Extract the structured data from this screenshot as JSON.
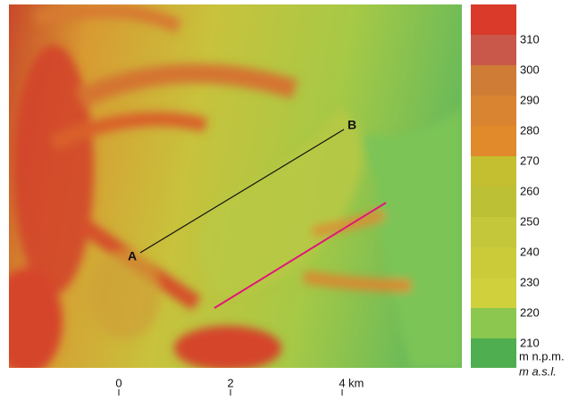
{
  "map": {
    "points": [
      {
        "label": "A"
      },
      {
        "label": "B"
      }
    ],
    "scale_bar": {
      "ticks": [
        "0",
        "2",
        "4"
      ],
      "unit": "km"
    },
    "legend": {
      "labels": [
        "310",
        "300",
        "290",
        "280",
        "270",
        "260",
        "250",
        "240",
        "230",
        "220",
        "210"
      ],
      "unit_pl": "m n.p.m.",
      "unit_en": "m a.s.l."
    }
  }
}
